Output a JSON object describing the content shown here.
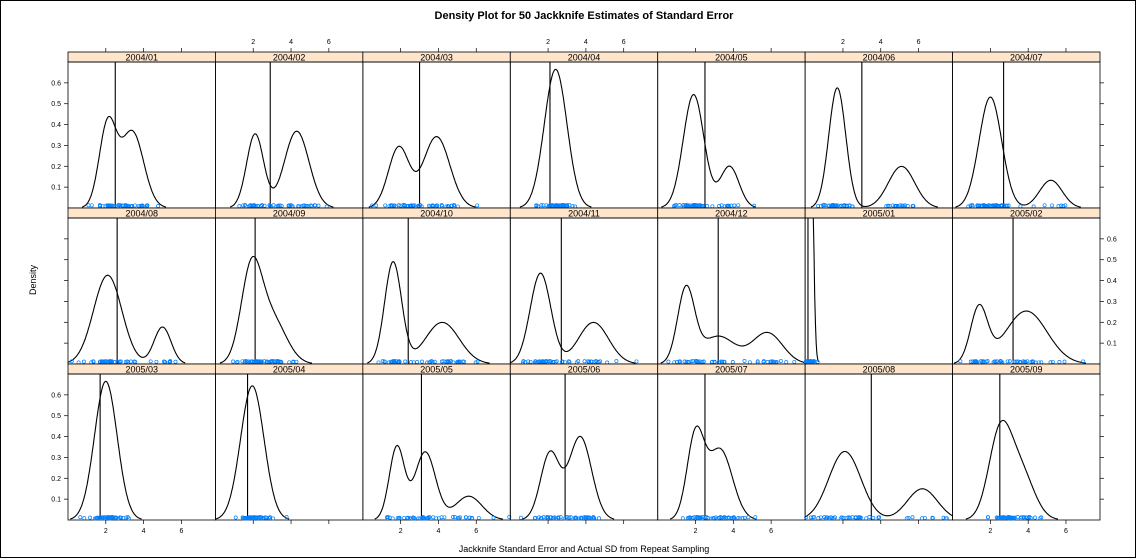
{
  "chart_data": {
    "type": "line",
    "title": "Density Plot for 50 Jackknife Estimates of Standard Error",
    "xlabel": "Jackknife Standard Error and Actual SD from Repeat Sampling",
    "ylabel": "Density",
    "xlim": [
      0,
      7.8
    ],
    "ylim": [
      0,
      0.7
    ],
    "xticks": [
      2,
      4,
      6
    ],
    "yticks": [
      0.1,
      0.2,
      0.3,
      0.4,
      0.5,
      0.6
    ],
    "colors": {
      "strip": "#ffe5cc",
      "line": "#000000",
      "rug": "#0080ff"
    },
    "panels": [
      {
        "label": "2004/01",
        "actual_sd": 2.5,
        "components": [
          [
            0.45,
            2.1,
            0.45
          ],
          [
            0.55,
            3.4,
            0.6
          ]
        ]
      },
      {
        "label": "2004/02",
        "actual_sd": 2.9,
        "components": [
          [
            0.4,
            2.1,
            0.45
          ],
          [
            0.6,
            4.3,
            0.65
          ]
        ]
      },
      {
        "label": "2004/03",
        "actual_sd": 3.0,
        "components": [
          [
            0.4,
            1.9,
            0.55
          ],
          [
            0.6,
            3.9,
            0.7
          ]
        ]
      },
      {
        "label": "2004/04",
        "actual_sd": 2.1,
        "components": [
          [
            1.0,
            2.4,
            0.6
          ]
        ]
      },
      {
        "label": "2004/05",
        "actual_sd": 2.5,
        "components": [
          [
            0.75,
            1.9,
            0.55
          ],
          [
            0.25,
            3.8,
            0.5
          ]
        ]
      },
      {
        "label": "2004/06",
        "actual_sd": 3.0,
        "components": [
          [
            0.65,
            1.7,
            0.45
          ],
          [
            0.35,
            5.1,
            0.7
          ]
        ]
      },
      {
        "label": "2004/07",
        "actual_sd": 2.7,
        "components": [
          [
            0.8,
            2.0,
            0.6
          ],
          [
            0.2,
            5.2,
            0.6
          ]
        ]
      },
      {
        "label": "2004/08",
        "actual_sd": 2.6,
        "components": [
          [
            0.8,
            2.1,
            0.75
          ],
          [
            0.2,
            5.0,
            0.45
          ]
        ]
      },
      {
        "label": "2004/09",
        "actual_sd": 2.1,
        "components": [
          [
            0.6,
            1.9,
            0.55
          ],
          [
            0.4,
            3.0,
            0.75
          ]
        ]
      },
      {
        "label": "2004/10",
        "actual_sd": 2.4,
        "components": [
          [
            0.55,
            1.6,
            0.45
          ],
          [
            0.45,
            4.2,
            0.9
          ]
        ]
      },
      {
        "label": "2004/11",
        "actual_sd": 2.7,
        "components": [
          [
            0.6,
            1.6,
            0.55
          ],
          [
            0.4,
            4.4,
            0.8
          ]
        ]
      },
      {
        "label": "2004/12",
        "actual_sd": 3.2,
        "components": [
          [
            0.4,
            1.5,
            0.45
          ],
          [
            0.3,
            3.2,
            0.9
          ],
          [
            0.3,
            5.8,
            0.8
          ]
        ]
      },
      {
        "label": "2005/01",
        "actual_sd": 0.15,
        "components": [
          [
            1.0,
            0.2,
            0.15
          ]
        ]
      },
      {
        "label": "2005/02",
        "actual_sd": 3.2,
        "components": [
          [
            0.3,
            1.4,
            0.45
          ],
          [
            0.7,
            3.9,
            1.1
          ]
        ]
      },
      {
        "label": "2005/03",
        "actual_sd": 1.7,
        "components": [
          [
            1.0,
            2.0,
            0.6
          ]
        ]
      },
      {
        "label": "2005/04",
        "actual_sd": 1.7,
        "components": [
          [
            1.0,
            1.95,
            0.62
          ]
        ]
      },
      {
        "label": "2005/05",
        "actual_sd": 3.1,
        "components": [
          [
            0.35,
            1.8,
            0.4
          ],
          [
            0.45,
            3.3,
            0.55
          ],
          [
            0.2,
            5.6,
            0.7
          ]
        ]
      },
      {
        "label": "2005/06",
        "actual_sd": 2.9,
        "components": [
          [
            0.4,
            2.1,
            0.5
          ],
          [
            0.6,
            3.7,
            0.6
          ]
        ]
      },
      {
        "label": "2005/07",
        "actual_sd": 2.5,
        "components": [
          [
            0.45,
            2.0,
            0.45
          ],
          [
            0.55,
            3.3,
            0.65
          ]
        ]
      },
      {
        "label": "2005/08",
        "actual_sd": 3.5,
        "components": [
          [
            0.7,
            2.1,
            0.85
          ],
          [
            0.3,
            6.2,
            0.8
          ]
        ]
      },
      {
        "label": "2005/09",
        "actual_sd": 2.5,
        "components": [
          [
            0.6,
            2.5,
            0.6
          ],
          [
            0.4,
            3.6,
            0.7
          ]
        ]
      }
    ]
  }
}
